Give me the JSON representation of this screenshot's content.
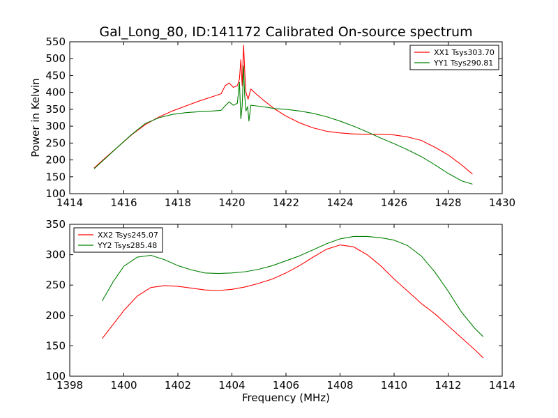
{
  "colors": {
    "xx": "#ff0000",
    "yy": "#008000"
  },
  "chart_data": [
    {
      "type": "line",
      "title": "Gal_Long_80, ID:141172 Calibrated On-source spectrum",
      "xlabel": "",
      "ylabel": "Power in Kelvin",
      "xlim": [
        1414,
        1430
      ],
      "ylim": [
        100,
        550
      ],
      "xticks": [
        1414,
        1416,
        1418,
        1420,
        1422,
        1424,
        1426,
        1428,
        1430
      ],
      "yticks": [
        100,
        150,
        200,
        250,
        300,
        350,
        400,
        450,
        500,
        550
      ],
      "legend_position": "top-right",
      "series": [
        {
          "name": "XX1 Tsys303.70",
          "color": "#ff0000",
          "x": [
            1414.9,
            1415.3,
            1415.8,
            1416.3,
            1416.8,
            1417.3,
            1417.8,
            1418.3,
            1418.8,
            1419.3,
            1419.6,
            1419.75,
            1419.9,
            1420.05,
            1420.2,
            1420.28,
            1420.33,
            1420.38,
            1420.43,
            1420.47,
            1420.52,
            1420.6,
            1420.7,
            1420.9,
            1421.2,
            1421.6,
            1422.0,
            1422.5,
            1423.0,
            1423.5,
            1424.0,
            1424.5,
            1425.0,
            1425.5,
            1426.0,
            1426.5,
            1427.0,
            1427.5,
            1428.0,
            1428.5,
            1428.9
          ],
          "values": [
            176,
            205,
            240,
            275,
            305,
            327,
            345,
            360,
            375,
            388,
            396,
            420,
            428,
            415,
            420,
            440,
            497,
            420,
            540,
            470,
            400,
            380,
            410,
            395,
            375,
            350,
            330,
            310,
            295,
            285,
            280,
            277,
            276,
            276,
            274,
            268,
            258,
            238,
            215,
            185,
            158
          ]
        },
        {
          "name": "YY1 Tsys290.81",
          "color": "#008000",
          "x": [
            1414.9,
            1415.3,
            1415.8,
            1416.3,
            1416.8,
            1417.3,
            1417.8,
            1418.3,
            1418.8,
            1419.3,
            1419.6,
            1419.75,
            1419.9,
            1420.05,
            1420.2,
            1420.28,
            1420.33,
            1420.38,
            1420.43,
            1420.47,
            1420.52,
            1420.58,
            1420.63,
            1420.7,
            1420.9,
            1421.2,
            1421.6,
            1422.0,
            1422.5,
            1423.0,
            1423.5,
            1424.0,
            1424.5,
            1425.0,
            1425.5,
            1426.0,
            1426.5,
            1427.0,
            1427.5,
            1428.0,
            1428.5,
            1428.9
          ],
          "values": [
            174,
            203,
            240,
            276,
            308,
            325,
            335,
            340,
            343,
            345,
            347,
            360,
            372,
            362,
            368,
            430,
            322,
            360,
            478,
            395,
            345,
            358,
            315,
            362,
            360,
            357,
            352,
            350,
            345,
            338,
            328,
            315,
            300,
            283,
            265,
            248,
            230,
            210,
            186,
            160,
            138,
            128
          ]
        }
      ]
    },
    {
      "type": "line",
      "title": "",
      "xlabel": "Frequency (MHz)",
      "ylabel": "",
      "xlim": [
        1398,
        1414
      ],
      "ylim": [
        100,
        350
      ],
      "xticks": [
        1398,
        1400,
        1402,
        1404,
        1406,
        1408,
        1410,
        1412,
        1414
      ],
      "yticks": [
        100,
        150,
        200,
        250,
        300,
        350
      ],
      "legend_position": "top-left",
      "series": [
        {
          "name": "XX2 Tsys245.07",
          "color": "#ff0000",
          "x": [
            1399.2,
            1399.6,
            1400.0,
            1400.5,
            1401.0,
            1401.5,
            1402.0,
            1402.5,
            1403.0,
            1403.5,
            1404.0,
            1404.5,
            1405.0,
            1405.5,
            1406.0,
            1406.5,
            1407.0,
            1407.5,
            1408.0,
            1408.5,
            1409.0,
            1409.5,
            1410.0,
            1410.5,
            1411.0,
            1411.5,
            1412.0,
            1412.5,
            1413.0,
            1413.3
          ],
          "values": [
            162,
            185,
            208,
            232,
            246,
            249,
            248,
            245,
            242,
            241,
            243,
            247,
            253,
            260,
            270,
            282,
            296,
            309,
            316,
            313,
            300,
            282,
            260,
            240,
            220,
            203,
            183,
            163,
            143,
            130
          ]
        },
        {
          "name": "YY2 Tsys285.48",
          "color": "#008000",
          "x": [
            1399.2,
            1399.6,
            1400.0,
            1400.5,
            1401.0,
            1401.5,
            1402.0,
            1402.5,
            1403.0,
            1403.5,
            1404.0,
            1404.5,
            1405.0,
            1405.5,
            1406.0,
            1406.5,
            1407.0,
            1407.5,
            1408.0,
            1408.5,
            1409.0,
            1409.5,
            1410.0,
            1410.5,
            1411.0,
            1411.5,
            1412.0,
            1412.5,
            1413.0,
            1413.3
          ],
          "values": [
            224,
            255,
            281,
            296,
            299,
            292,
            282,
            275,
            270,
            269,
            270,
            272,
            276,
            282,
            290,
            298,
            308,
            318,
            326,
            330,
            330,
            328,
            324,
            315,
            298,
            272,
            240,
            205,
            178,
            165
          ]
        }
      ]
    }
  ]
}
